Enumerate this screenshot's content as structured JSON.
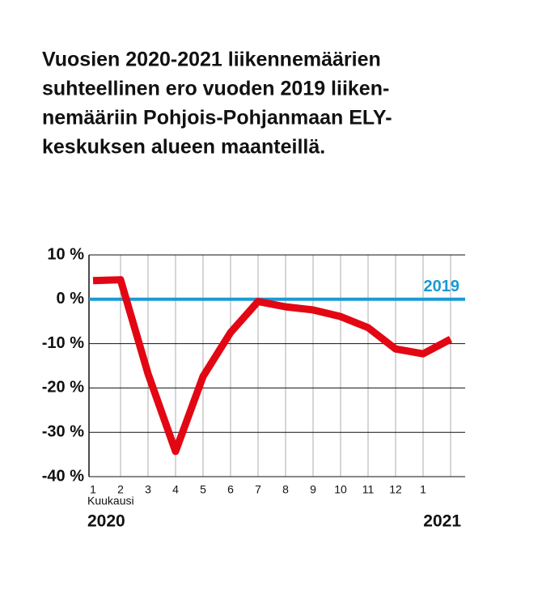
{
  "chart_data": {
    "type": "line",
    "title": [
      "Vuosien 2020-2021 liikennemäärien",
      "suhteellinen ero vuoden 2019 liiken-",
      "nemääriin Pohjois-Pohjanmaan ELY-",
      "keskuksen alueen maanteillä."
    ],
    "x_label": "Kuukausi",
    "year_labels": [
      "2020",
      "2021"
    ],
    "categories": [
      "1",
      "2",
      "3",
      "4",
      "5",
      "6",
      "7",
      "8",
      "9",
      "10",
      "11",
      "12",
      "1",
      null
    ],
    "series": [
      {
        "color": "#e30613",
        "values": [
          4.2,
          4.4,
          -16.8,
          -34.3,
          -17.4,
          -7.5,
          -0.5,
          -1.7,
          -2.4,
          -3.9,
          -6.4,
          -11.2,
          -12.3,
          -9.0
        ]
      }
    ],
    "reference": {
      "value": 0,
      "label": "2019",
      "color": "#1a9ad6"
    },
    "ylim": [
      -40,
      10
    ],
    "yticks": [
      {
        "value": 10,
        "label": "10 %"
      },
      {
        "value": 0,
        "label": "0 %"
      },
      {
        "value": -10,
        "label": "-10 %"
      },
      {
        "value": -20,
        "label": "-20 %"
      },
      {
        "value": -30,
        "label": "-30 %"
      },
      {
        "value": -40,
        "label": "-40 %"
      }
    ],
    "grid": true
  }
}
